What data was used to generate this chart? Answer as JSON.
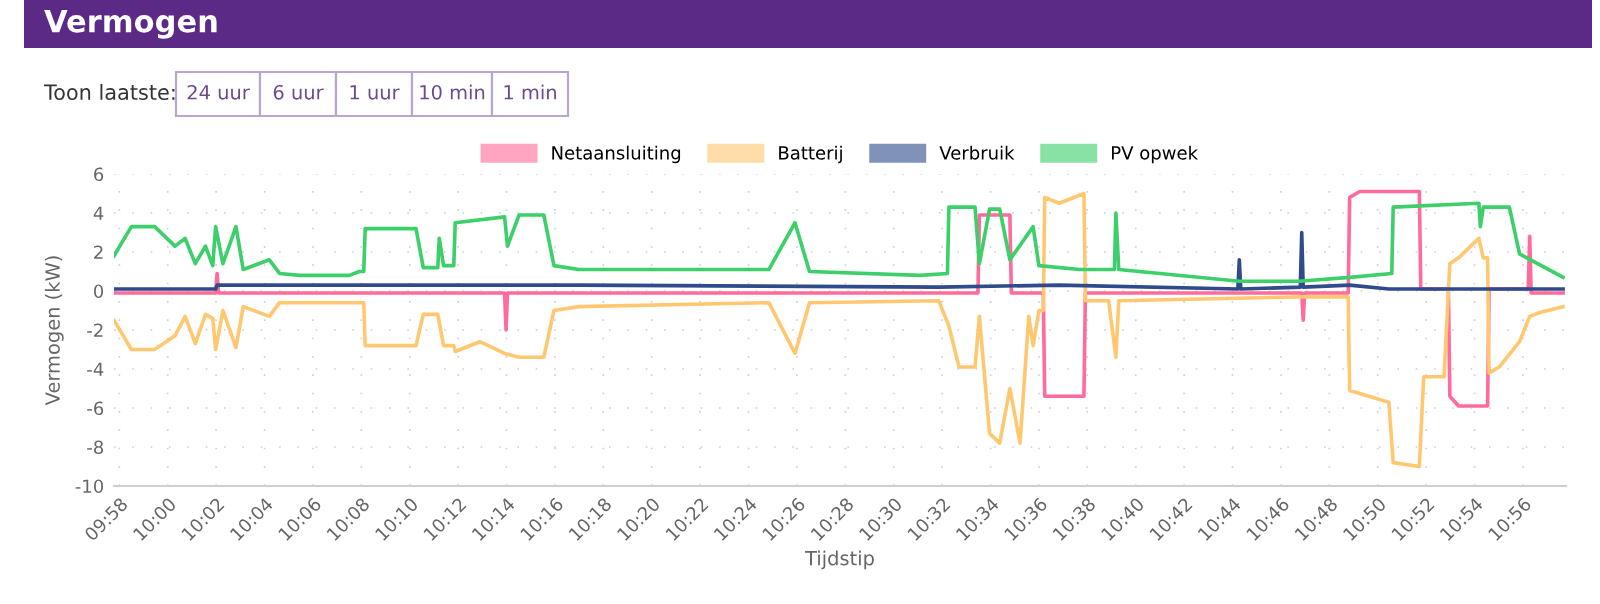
{
  "chart_data": {
    "type": "line",
    "title": "Vermogen",
    "annotations": [
      "Toon laatste:",
      "24 uur",
      "6 uur",
      "1 uur",
      "10 min",
      "1 min"
    ],
    "xlabel": "Tijdstip",
    "ylabel": "Vermogen (kW)",
    "xlim": [
      9.963,
      10.963
    ],
    "ylim": [
      -10,
      6
    ],
    "yticks": [
      -10,
      -8,
      -6,
      -4,
      -2,
      0,
      2,
      4,
      6
    ],
    "xticks": [
      {
        "value": 9.9667,
        "label": "09:58"
      },
      {
        "value": 10.0,
        "label": "10:00"
      },
      {
        "value": 10.0333,
        "label": "10:02"
      },
      {
        "value": 10.0667,
        "label": "10:04"
      },
      {
        "value": 10.1,
        "label": "10:06"
      },
      {
        "value": 10.1333,
        "label": "10:08"
      },
      {
        "value": 10.1667,
        "label": "10:10"
      },
      {
        "value": 10.2,
        "label": "10:12"
      },
      {
        "value": 10.2333,
        "label": "10:14"
      },
      {
        "value": 10.2667,
        "label": "10:16"
      },
      {
        "value": 10.3,
        "label": "10:18"
      },
      {
        "value": 10.3333,
        "label": "10:20"
      },
      {
        "value": 10.3667,
        "label": "10:22"
      },
      {
        "value": 10.4,
        "label": "10:24"
      },
      {
        "value": 10.4333,
        "label": "10:26"
      },
      {
        "value": 10.4667,
        "label": "10:28"
      },
      {
        "value": 10.5,
        "label": "10:30"
      },
      {
        "value": 10.5333,
        "label": "10:32"
      },
      {
        "value": 10.5667,
        "label": "10:34"
      },
      {
        "value": 10.6,
        "label": "10:36"
      },
      {
        "value": 10.6333,
        "label": "10:38"
      },
      {
        "value": 10.6667,
        "label": "10:40"
      },
      {
        "value": 10.7,
        "label": "10:42"
      },
      {
        "value": 10.7333,
        "label": "10:44"
      },
      {
        "value": 10.7667,
        "label": "10:46"
      },
      {
        "value": 10.8,
        "label": "10:48"
      },
      {
        "value": 10.8333,
        "label": "10:50"
      },
      {
        "value": 10.8667,
        "label": "10:52"
      },
      {
        "value": 10.9,
        "label": "10:54"
      },
      {
        "value": 10.9333,
        "label": "10:56"
      }
    ],
    "grid": true,
    "legend": "top",
    "line_style": "solid",
    "series": [
      {
        "name": "Netaansluiting",
        "color": "#ff6b9a",
        "x": [
          9.963,
          10.033,
          10.034,
          10.035,
          10.232,
          10.233,
          10.234,
          10.558,
          10.559,
          10.58,
          10.581,
          10.603,
          10.604,
          10.631,
          10.632,
          10.781,
          10.782,
          10.783,
          10.813,
          10.814,
          10.821,
          10.862,
          10.863,
          10.882,
          10.883,
          10.889,
          10.909,
          10.91,
          10.937,
          10.938,
          10.939,
          10.961
        ],
        "values": [
          -0.1,
          -0.1,
          0.9,
          -0.1,
          -0.1,
          -2.0,
          -0.1,
          -0.1,
          3.9,
          3.9,
          -0.1,
          -0.1,
          -5.4,
          -5.4,
          -0.1,
          -0.1,
          -1.5,
          -0.1,
          -0.1,
          4.8,
          5.1,
          5.1,
          0.1,
          0.1,
          -5.4,
          -5.9,
          -5.9,
          0.1,
          0.1,
          2.8,
          -0.1,
          -0.1
        ]
      },
      {
        "name": "Batterij",
        "color": "#ffc870",
        "x": [
          9.963,
          9.975,
          9.991,
          10.005,
          10.012,
          10.019,
          10.026,
          10.031,
          10.033,
          10.038,
          10.047,
          10.052,
          10.07,
          10.077,
          10.135,
          10.136,
          10.171,
          10.176,
          10.186,
          10.19,
          10.197,
          10.198,
          10.215,
          10.232,
          10.242,
          10.259,
          10.266,
          10.283,
          10.414,
          10.432,
          10.442,
          10.531,
          10.538,
          10.545,
          10.556,
          10.559,
          10.566,
          10.573,
          10.58,
          10.587,
          10.593,
          10.596,
          10.6,
          10.603,
          10.604,
          10.614,
          10.631,
          10.632,
          10.648,
          10.653,
          10.655,
          10.779,
          10.813,
          10.814,
          10.841,
          10.844,
          10.862,
          10.865,
          10.879,
          10.883,
          10.889,
          10.903,
          10.906,
          10.909,
          10.91,
          10.917,
          10.931,
          10.938,
          10.945,
          10.961
        ],
        "values": [
          -1.5,
          -3.0,
          -3.0,
          -2.3,
          -1.3,
          -2.7,
          -1.2,
          -1.4,
          -3.0,
          -1.0,
          -2.9,
          -0.8,
          -1.3,
          -0.6,
          -0.6,
          -2.8,
          -2.8,
          -1.2,
          -1.2,
          -2.8,
          -2.8,
          -3.1,
          -2.6,
          -3.2,
          -3.4,
          -3.4,
          -1.0,
          -0.8,
          -0.6,
          -3.2,
          -0.6,
          -0.5,
          -1.8,
          -3.9,
          -3.9,
          -1.3,
          -7.3,
          -7.8,
          -5.0,
          -7.8,
          -1.3,
          -2.8,
          -1.0,
          -1.0,
          4.8,
          4.5,
          5.0,
          -0.5,
          -0.5,
          -3.4,
          -0.5,
          -0.3,
          -0.3,
          -5.1,
          -5.7,
          -8.8,
          -9.0,
          -4.4,
          -4.4,
          1.4,
          1.7,
          2.7,
          1.7,
          1.7,
          -4.2,
          -3.9,
          -2.6,
          -1.3,
          -1.1,
          -0.8
        ]
      },
      {
        "name": "Verbruik",
        "color": "#2f4b8c",
        "x": [
          9.963,
          10.033,
          10.034,
          10.283,
          10.531,
          10.614,
          10.737,
          10.738,
          10.739,
          10.78,
          10.781,
          10.782,
          10.814,
          10.841,
          10.961
        ],
        "values": [
          0.1,
          0.1,
          0.3,
          0.3,
          0.2,
          0.3,
          0.1,
          1.6,
          0.1,
          0.2,
          3.0,
          0.2,
          0.3,
          0.1,
          0.1
        ]
      },
      {
        "name": "PV opwek",
        "color": "#3ccf6a",
        "x": [
          9.963,
          9.975,
          9.991,
          10.005,
          10.012,
          10.019,
          10.026,
          10.031,
          10.033,
          10.038,
          10.047,
          10.052,
          10.07,
          10.077,
          10.091,
          10.125,
          10.132,
          10.135,
          10.136,
          10.171,
          10.176,
          10.186,
          10.187,
          10.19,
          10.197,
          10.198,
          10.232,
          10.234,
          10.242,
          10.259,
          10.266,
          10.283,
          10.414,
          10.432,
          10.442,
          10.518,
          10.537,
          10.538,
          10.556,
          10.559,
          10.566,
          10.573,
          10.58,
          10.596,
          10.6,
          10.628,
          10.652,
          10.653,
          10.655,
          10.738,
          10.779,
          10.814,
          10.843,
          10.844,
          10.903,
          10.904,
          10.906,
          10.924,
          10.931,
          10.961
        ],
        "values": [
          1.8,
          3.3,
          3.3,
          2.3,
          2.7,
          1.4,
          2.3,
          1.3,
          3.3,
          1.4,
          3.3,
          1.1,
          1.6,
          0.9,
          0.8,
          0.8,
          1.0,
          1.0,
          3.2,
          3.2,
          1.2,
          1.2,
          2.7,
          1.3,
          1.3,
          3.5,
          3.8,
          2.3,
          3.9,
          3.9,
          1.3,
          1.1,
          1.1,
          3.5,
          1.0,
          0.8,
          0.9,
          4.3,
          4.3,
          1.4,
          4.2,
          4.2,
          1.6,
          3.3,
          1.3,
          1.1,
          1.1,
          4.0,
          1.1,
          0.5,
          0.5,
          0.7,
          0.9,
          4.3,
          4.5,
          3.3,
          4.3,
          4.3,
          1.9,
          0.7
        ]
      }
    ]
  }
}
